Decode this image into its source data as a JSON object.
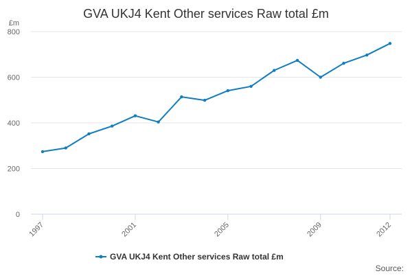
{
  "chart_data": {
    "type": "line",
    "title": "GVA UKJ4 Kent Other services Raw total £m",
    "y_unit": "£m",
    "xlabel": "",
    "ylabel": "",
    "ylim": [
      0,
      800
    ],
    "xlim": [
      1997,
      2012
    ],
    "y_ticks": [
      0,
      200,
      400,
      600,
      800
    ],
    "x_ticks": [
      1997,
      2001,
      2005,
      2009,
      2012
    ],
    "grid": true,
    "legend_position": "bottom-center",
    "series": [
      {
        "name": "GVA UKJ4 Kent Other services Raw total £m",
        "color": "#0f7dc2",
        "x": [
          1997,
          1998,
          1999,
          2000,
          2001,
          2002,
          2003,
          2004,
          2005,
          2006,
          2007,
          2008,
          2009,
          2010,
          2011,
          2012
        ],
        "values": [
          274,
          290,
          352,
          386,
          431,
          404,
          514,
          499,
          541,
          560,
          630,
          674,
          600,
          661,
          697,
          748
        ]
      }
    ],
    "source_label": "Source:"
  }
}
